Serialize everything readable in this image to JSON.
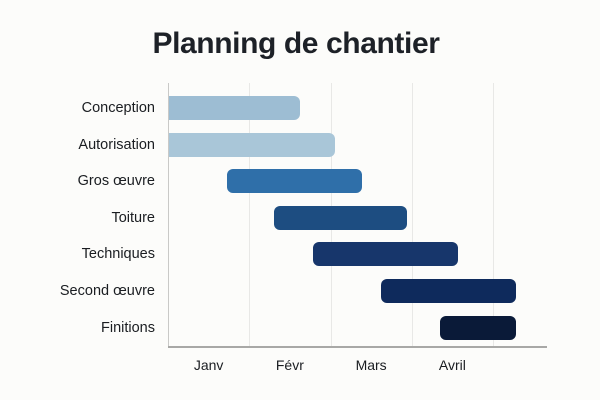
{
  "page": {
    "background": "#fcfcfa"
  },
  "chart_data": {
    "type": "gantt",
    "title": "Planning de chantier",
    "unit": "months_from_jan_1",
    "x_axis": {
      "tick_labels": [
        "Janv",
        "Févr",
        "Mars",
        "Avril"
      ],
      "gridline_units": [
        0,
        1,
        2,
        3,
        4
      ],
      "domain": [
        0,
        4.67
      ],
      "grid": "vertical-only",
      "legend": "none"
    },
    "tasks": [
      {
        "label": "Conception",
        "start": 0,
        "end": 1.63,
        "color": "#9dbdd3"
      },
      {
        "label": "Autorisation",
        "start": 0,
        "end": 2.05,
        "color": "#a9c6d8"
      },
      {
        "label": "Gros œuvre",
        "start": 0.73,
        "end": 2.39,
        "color": "#2f6fa9"
      },
      {
        "label": "Toiture",
        "start": 1.3,
        "end": 2.94,
        "color": "#1d4d81"
      },
      {
        "label": "Techniques",
        "start": 1.79,
        "end": 3.57,
        "color": "#17366b"
      },
      {
        "label": "Second œuvre",
        "start": 2.62,
        "end": 4.28,
        "color": "#0e2a5c"
      },
      {
        "label": "Finitions",
        "start": 3.35,
        "end": 4.28,
        "color": "#0a1a38"
      }
    ]
  }
}
